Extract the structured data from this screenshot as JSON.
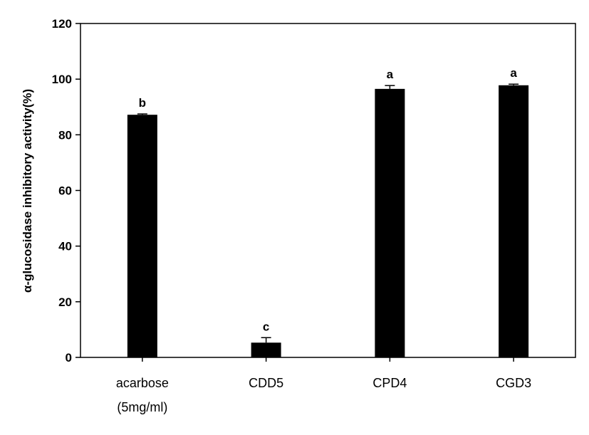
{
  "chart_data": {
    "type": "bar",
    "title": "",
    "ylabel": "α-glucosidase inhibitory activity(%)",
    "xlabel": "",
    "ylim": [
      0,
      120
    ],
    "yticks": [
      0,
      20,
      40,
      60,
      80,
      100,
      120
    ],
    "categories": [
      [
        "acarbose",
        "(5mg/ml)"
      ],
      [
        "CDD5"
      ],
      [
        "CPD4"
      ],
      [
        "CGD3"
      ]
    ],
    "values": [
      87.2,
      5.3,
      96.5,
      97.8
    ],
    "errors": [
      0.3,
      1.8,
      1.2,
      0.4
    ],
    "significance_labels": [
      "b",
      "c",
      "a",
      "a"
    ],
    "bar_color": "#000000"
  }
}
